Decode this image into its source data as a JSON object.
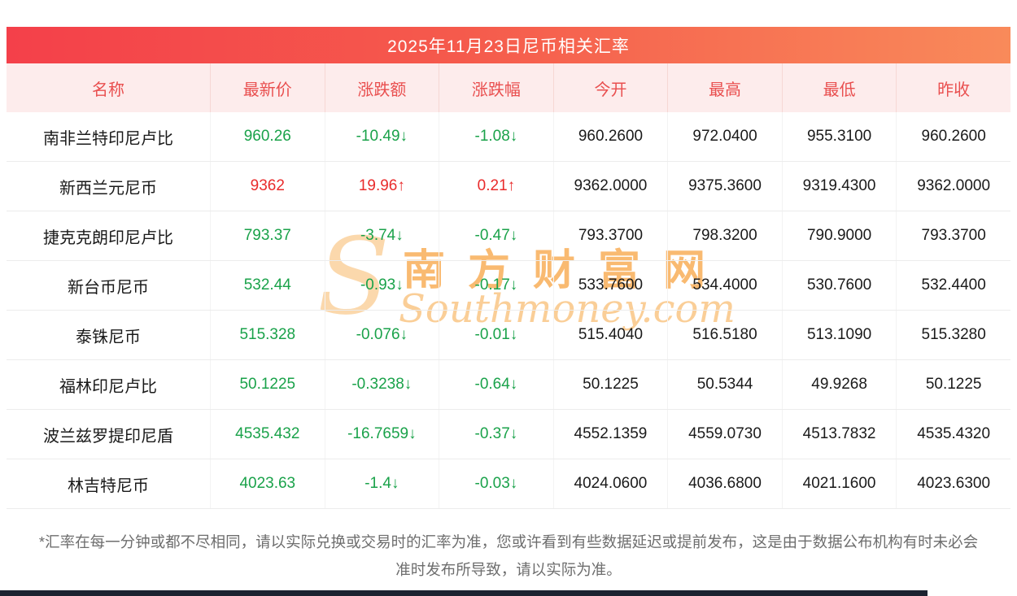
{
  "title": "2025年11月23日尼币相关汇率",
  "colors": {
    "title_gradient_left": "#f4404a",
    "title_gradient_right": "#f98a5a",
    "header_bg": "#fdecec",
    "header_text": "#e94f4f",
    "up": "#e92b2b",
    "down": "#1aa24a",
    "watermark": "#f6a03a"
  },
  "watermark": {
    "s": "S",
    "cn": "南方财富网",
    "en": "Southmoney.com"
  },
  "footer": "*汇率在每一分钟或都不尽相同，请以实际兑换或交易时的汇率为准，您或许看到有些数据延迟或提前发布，这是由于数据公布机构有时未必会准时发布所导致，请以实际为准。",
  "chart_data": {
    "type": "table",
    "title": "2025年11月23日尼币相关汇率",
    "columns": [
      "名称",
      "最新价",
      "涨跌额",
      "涨跌幅",
      "今开",
      "最高",
      "最低",
      "昨收"
    ],
    "rows": [
      {
        "name": "南非兰特印尼卢比",
        "latest": "960.26",
        "change": "-10.49↓",
        "pct": "-1.08↓",
        "open": "960.2600",
        "high": "972.0400",
        "low": "955.3100",
        "prev": "960.2600",
        "dir": "down"
      },
      {
        "name": "新西兰元尼币",
        "latest": "9362",
        "change": "19.96↑",
        "pct": "0.21↑",
        "open": "9362.0000",
        "high": "9375.3600",
        "low": "9319.4300",
        "prev": "9362.0000",
        "dir": "up"
      },
      {
        "name": "捷克克朗印尼卢比",
        "latest": "793.37",
        "change": "-3.74↓",
        "pct": "-0.47↓",
        "open": "793.3700",
        "high": "798.3200",
        "low": "790.9000",
        "prev": "793.3700",
        "dir": "down"
      },
      {
        "name": "新台币尼币",
        "latest": "532.44",
        "change": "-0.93↓",
        "pct": "-0.17↓",
        "open": "533.7600",
        "high": "534.4000",
        "low": "530.7600",
        "prev": "532.4400",
        "dir": "down"
      },
      {
        "name": "泰铢尼币",
        "latest": "515.328",
        "change": "-0.076↓",
        "pct": "-0.01↓",
        "open": "515.4040",
        "high": "516.5180",
        "low": "513.1090",
        "prev": "515.3280",
        "dir": "down"
      },
      {
        "name": "福林印尼卢比",
        "latest": "50.1225",
        "change": "-0.3238↓",
        "pct": "-0.64↓",
        "open": "50.1225",
        "high": "50.5344",
        "low": "49.9268",
        "prev": "50.1225",
        "dir": "down"
      },
      {
        "name": "波兰兹罗提印尼盾",
        "latest": "4535.432",
        "change": "-16.7659↓",
        "pct": "-0.37↓",
        "open": "4552.1359",
        "high": "4559.0730",
        "low": "4513.7832",
        "prev": "4535.4320",
        "dir": "down"
      },
      {
        "name": "林吉特尼币",
        "latest": "4023.63",
        "change": "-1.4↓",
        "pct": "-0.03↓",
        "open": "4024.0600",
        "high": "4036.6800",
        "low": "4021.1600",
        "prev": "4023.6300",
        "dir": "down"
      }
    ]
  }
}
